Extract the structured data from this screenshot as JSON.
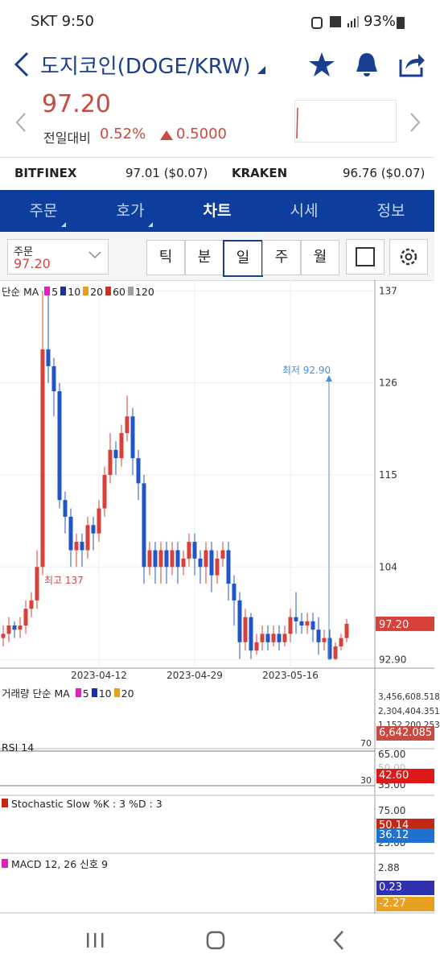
{
  "status_bar": {
    "carrier": "SKT",
    "time": "9:50",
    "battery": "93%"
  },
  "header": {
    "title": "도지코인(DOGE/KRW)"
  },
  "price": {
    "current": "97.20",
    "change_label": "전일대비",
    "change_pct": "0.52%",
    "change_abs": "0.5000"
  },
  "exchanges": [
    {
      "name": "BITFINEX",
      "value": "97.01 ($0.07)"
    },
    {
      "name": "KRAKEN",
      "value": "96.76 ($0.07)"
    }
  ],
  "tabs": [
    "주문",
    "호가",
    "차트",
    "시세",
    "정보"
  ],
  "order_select": {
    "label": "주문",
    "value": "97.20"
  },
  "periods": [
    "틱",
    "분",
    "일",
    "주",
    "월"
  ],
  "chart_data": {
    "type": "candlestick",
    "legend_title": "단순 MA",
    "ma": [
      {
        "name": "5",
        "color": "#e020c0"
      },
      {
        "name": "10",
        "color": "#1a2fa0"
      },
      {
        "name": "20",
        "color": "#e8a020"
      },
      {
        "name": "60",
        "color": "#d03020"
      },
      {
        "name": "120",
        "color": "#a0a0a0"
      }
    ],
    "up_color": "#d8403a",
    "down_color": "#1f55c8",
    "categories": [
      null,
      null,
      null,
      null,
      null,
      null,
      null,
      null,
      null,
      null,
      null,
      null,
      null,
      null,
      null,
      null,
      null,
      "2023-04-12",
      null,
      null,
      null,
      null,
      null,
      null,
      null,
      null,
      null,
      null,
      null,
      null,
      null,
      null,
      null,
      null,
      "2023-04-29",
      null,
      null,
      null,
      null,
      null,
      null,
      null,
      null,
      null,
      null,
      null,
      null,
      null,
      null,
      null,
      null,
      "2023-05-16",
      null,
      null,
      null,
      null,
      null,
      null,
      null,
      null,
      null,
      null
    ],
    "open": [
      95.5,
      96,
      97,
      96.5,
      97,
      99,
      100,
      104,
      130,
      128,
      125,
      112,
      110,
      106,
      107,
      106,
      109,
      108,
      111,
      115,
      118,
      117,
      120,
      122,
      117,
      114,
      104,
      106,
      104,
      106,
      104,
      106,
      104,
      105,
      107,
      105,
      104,
      106,
      103,
      105,
      106,
      102,
      100,
      95,
      98,
      94,
      95,
      96,
      95,
      96,
      95,
      96,
      98,
      97.5,
      97,
      97.5,
      96.5,
      95,
      95.5,
      93,
      94.5,
      95.5
    ],
    "high": [
      97,
      98,
      97.5,
      98,
      100,
      101,
      106,
      137,
      137,
      129,
      126,
      113,
      111,
      108,
      108,
      110,
      110,
      112,
      116,
      120,
      119,
      121,
      124.5,
      123,
      118,
      115,
      107,
      107,
      107,
      107,
      107,
      107,
      106,
      108,
      108,
      106,
      107,
      107,
      106,
      107,
      107,
      103,
      101,
      99,
      98.5,
      96,
      97,
      97,
      97,
      97,
      97,
      99,
      101,
      98.5,
      98.5,
      98.5,
      98,
      96.5,
      96.5,
      95,
      96,
      97.8
    ],
    "low": [
      94.5,
      95,
      95.5,
      95.5,
      96,
      98,
      99,
      103,
      126,
      122,
      111,
      108,
      104,
      104,
      104,
      105,
      106,
      107,
      110,
      114,
      115,
      116,
      119,
      115,
      112,
      102,
      103,
      102,
      102,
      102,
      103,
      102,
      103,
      104,
      103,
      102,
      102,
      101,
      102,
      104,
      100,
      97,
      93,
      94,
      93,
      93.5,
      94,
      94,
      94.5,
      94,
      94.5,
      95,
      96,
      96,
      96,
      95,
      93.5,
      94,
      92.9,
      92.9,
      94,
      95
    ],
    "close": [
      96,
      97,
      96.5,
      97,
      99,
      100,
      104,
      130,
      128,
      125,
      112,
      110,
      106,
      107,
      106,
      109,
      108,
      111,
      115,
      118,
      117,
      120,
      122,
      117,
      114,
      104,
      106,
      104,
      106,
      104,
      106,
      104,
      105,
      107,
      105,
      104,
      106,
      103,
      105,
      106,
      102,
      100,
      95,
      98,
      94,
      95,
      96,
      95,
      96,
      95,
      96,
      98,
      97.5,
      97,
      97.5,
      96.5,
      95,
      95.5,
      93,
      94.5,
      95.5,
      97.2
    ],
    "ylim": [
      91.9,
      137.9
    ],
    "yticks": [
      137,
      126,
      115,
      104,
      {
        "value": 92.9,
        "label": "92.90"
      }
    ],
    "last_label": "97.20",
    "low_note": "최저 92.90",
    "high_note": "최고 137",
    "grid": true
  },
  "panels": {
    "volume": {
      "title": "거래량 단순 MA",
      "ma": [
        {
          "name": "5",
          "color": "#e020c0"
        },
        {
          "name": "10",
          "color": "#1a2fa0"
        },
        {
          "name": "20",
          "color": "#e8a020"
        }
      ],
      "ticks": [
        "3,456,608.518",
        "2,304,404.351",
        "1,152,200.253"
      ],
      "last": "6,642.085"
    },
    "rsi": {
      "title": "RSI 14",
      "ticks": [
        "65.00",
        "50.00",
        "35.00"
      ],
      "levels": [
        "70",
        "30"
      ],
      "last": "42.60"
    },
    "stochastic": {
      "title": "Stochastic Slow %K : 3  %D : 3",
      "ticks": [
        "75.00",
        "25.00"
      ],
      "k": "50.14",
      "d": "36.12"
    },
    "macd": {
      "title": "MACD 12, 26  신호 9",
      "ticks": [
        "2.88"
      ],
      "macd": "0.23",
      "signal": "-2.27"
    }
  }
}
